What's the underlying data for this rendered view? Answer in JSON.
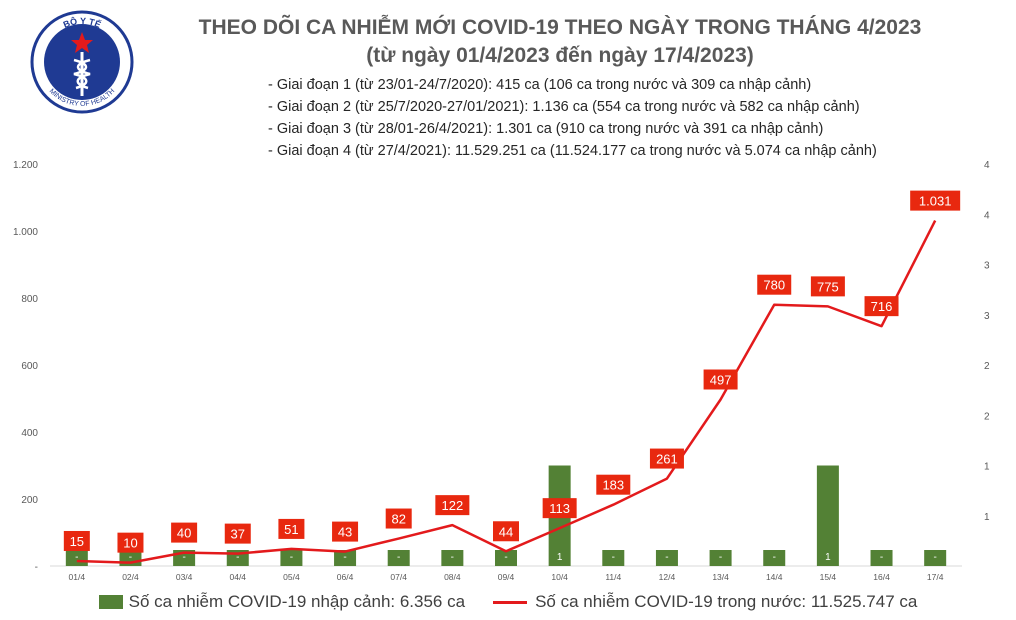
{
  "header": {
    "logo_text_top": "BỘ Y TẾ",
    "logo_text_bottom": "MINISTRY OF HEALTH",
    "title_line1": "THEO DÕI CA NHIỄM MỚI COVID-19 THEO NGÀY TRONG THÁNG 4/2023",
    "title_line2": "(từ ngày 01/4/2023 đến ngày 17/4/2023)"
  },
  "notes": [
    "- Giai đoạn 1 (từ 23/01-24/7/2020): 415 ca (106 ca trong nước và 309 ca nhập cảnh)",
    "- Giai đoạn 2 (từ 25/7/2020-27/01/2021): 1.136 ca (554 ca trong nước và 582 ca nhập cảnh)",
    "- Giai đoạn 3 (từ 28/01-26/4/2021): 1.301 ca (910 ca trong nước và 391 ca nhập cảnh)",
    "- Giai đoạn 4 (từ 27/4/2021): 11.529.251 ca (11.524.177 ca trong nước và 5.074 ca nhập cảnh)"
  ],
  "chart_data": {
    "type": "bar",
    "categories": [
      "01/4",
      "02/4",
      "03/4",
      "04/4",
      "05/4",
      "06/4",
      "07/4",
      "08/4",
      "09/4",
      "10/4",
      "11/4",
      "12/4",
      "13/4",
      "14/4",
      "15/4",
      "16/4",
      "17/4"
    ],
    "series": [
      {
        "name": "Số ca nhiễm COVID-19 nhập cảnh: 6.356 ca",
        "kind": "bar",
        "axis": "right",
        "values": [
          0,
          0,
          0,
          0,
          0,
          0,
          0,
          0,
          0,
          1,
          0,
          0,
          0,
          0,
          1,
          0,
          0
        ],
        "labels": [
          "-",
          "-",
          "-",
          "-",
          "-",
          "-",
          "-",
          "-",
          "-",
          "1",
          "-",
          "-",
          "-",
          "-",
          "1",
          "-",
          "-"
        ],
        "color": "#538135"
      },
      {
        "name": "Số ca nhiễm COVID-19 trong nước: 11.525.747 ca",
        "kind": "line",
        "axis": "left",
        "values": [
          15,
          10,
          40,
          37,
          51,
          43,
          82,
          122,
          44,
          113,
          183,
          261,
          497,
          780,
          775,
          716,
          1031
        ],
        "labels": [
          "15",
          "10",
          "40",
          "37",
          "51",
          "43",
          "82",
          "122",
          "44",
          "113",
          "183",
          "261",
          "497",
          "780",
          "775",
          "716",
          "1.031"
        ],
        "color": "#e31a1c"
      }
    ],
    "y_left": {
      "ylim": [
        0,
        1200
      ],
      "ticks": [
        "-",
        "200",
        "400",
        "600",
        "800",
        "1.000",
        "1.200"
      ]
    },
    "y_right": {
      "ylim": [
        0,
        4
      ],
      "ticks": [
        "",
        "1",
        "1",
        "2",
        "2",
        "3",
        "3",
        "4",
        "4"
      ]
    },
    "grid": false,
    "legend": "bottom"
  }
}
